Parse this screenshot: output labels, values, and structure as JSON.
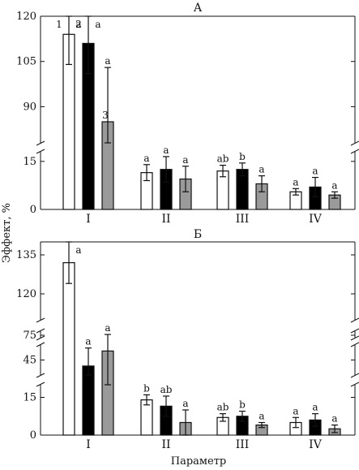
{
  "ylabel": "Эффект, %",
  "xlabel": "Параметр",
  "series_colors": [
    "#ffffff",
    "#000000",
    "#9a9a9a"
  ],
  "chart_data": [
    {
      "type": "bar",
      "title": "А",
      "categories": [
        "I",
        "II",
        "III",
        "IV"
      ],
      "axis_breaks": [
        {
          "range": [
            0,
            18
          ],
          "ticks": [
            0,
            15
          ]
        },
        {
          "range": [
            78,
            120
          ],
          "ticks": [
            90,
            105,
            120
          ]
        }
      ],
      "series_markers": [
        "1",
        "2",
        "3"
      ],
      "series": [
        {
          "values": [
            114,
            11.5,
            12,
            5.5
          ],
          "errors": [
            10,
            2.5,
            1.8,
            1
          ],
          "labels": [
            "a",
            "a",
            "ab",
            "a"
          ]
        },
        {
          "values": [
            111,
            12.5,
            12.5,
            7
          ],
          "errors": [
            10,
            4,
            2,
            3
          ],
          "labels": [
            "a",
            "a",
            "b",
            "a"
          ]
        },
        {
          "values": [
            85,
            9.5,
            8,
            4.5
          ],
          "errors": [
            18,
            4,
            2.5,
            1
          ],
          "labels": [
            "a",
            "a",
            "a",
            "a"
          ]
        }
      ]
    },
    {
      "type": "bar",
      "title": "Б",
      "categories": [
        "I",
        "II",
        "III",
        "IV"
      ],
      "axis_breaks": [
        {
          "range": [
            0,
            20
          ],
          "ticks": [
            0,
            15
          ]
        },
        {
          "range": [
            40,
            50
          ],
          "ticks": [
            45
          ]
        },
        {
          "range": [
            72,
            80
          ],
          "ticks": [
            75
          ]
        },
        {
          "range": [
            110,
            140
          ],
          "ticks": [
            120,
            135
          ]
        }
      ],
      "series_markers": [
        "",
        "",
        ""
      ],
      "series": [
        {
          "values": [
            132,
            14,
            7,
            5
          ],
          "errors": [
            8,
            2,
            1.5,
            2
          ],
          "labels": [
            "a",
            "b",
            "ab",
            "a"
          ]
        },
        {
          "values": [
            43,
            11.5,
            7.5,
            6
          ],
          "errors": [
            6,
            4,
            2,
            2.5
          ],
          "labels": [
            "a",
            "ab",
            "b",
            "a"
          ]
        },
        {
          "values": [
            48,
            5,
            4,
            2.5
          ],
          "errors": [
            28,
            5,
            1,
            1.5
          ],
          "labels": [
            "a",
            "a",
            "a",
            "a"
          ]
        }
      ]
    }
  ]
}
